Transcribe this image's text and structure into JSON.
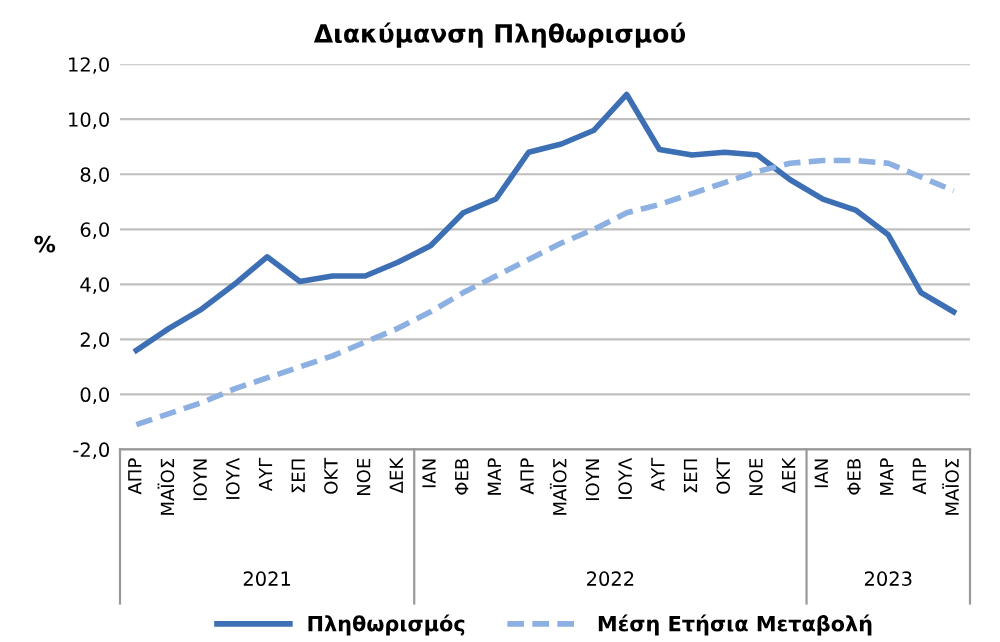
{
  "chart_data": {
    "type": "line",
    "title": "Διακύμανση Πληθωρισμού",
    "ylabel": "%",
    "categories": [
      "ΑΠΡ",
      "ΜΑΪΟΣ",
      "ΙΟΥΝ",
      "ΙΟΥΛ",
      "ΑΥΓ",
      "ΣΕΠ",
      "ΟΚΤ",
      "ΝΟΕ",
      "ΔΕΚ",
      "ΙΑΝ",
      "ΦΕΒ",
      "ΜΑΡ",
      "ΑΠΡ",
      "ΜΑΪΟΣ",
      "ΙΟΥΝ",
      "ΙΟΥΛ",
      "ΑΥΓ",
      "ΣΕΠ",
      "ΟΚΤ",
      "ΝΟΕ",
      "ΔΕΚ",
      "ΙΑΝ",
      "ΦΕΒ",
      "ΜΑΡ",
      "ΑΠΡ",
      "ΜΑΪΟΣ"
    ],
    "annotations": [
      "2021",
      "2022",
      "2023"
    ],
    "ylim": [
      -2,
      12
    ],
    "yticks": [
      {
        "value": -2,
        "label": "-2,0"
      },
      {
        "value": 0,
        "label": "0,0"
      },
      {
        "value": 2,
        "label": "2,0"
      },
      {
        "value": 4,
        "label": "4,0"
      },
      {
        "value": 6,
        "label": "6,0"
      },
      {
        "value": 8,
        "label": "8,0"
      },
      {
        "value": 10,
        "label": "10,0"
      },
      {
        "value": 12,
        "label": "12,0"
      }
    ],
    "grid": "y",
    "legend": "bottom",
    "marker": "none",
    "series": [
      {
        "name": "Πληθωρισμός",
        "color": "#3d6fb4",
        "line_style": "solid",
        "values": [
          1.6,
          2.4,
          3.1,
          4.0,
          5.0,
          4.1,
          4.3,
          4.3,
          4.8,
          5.4,
          6.6,
          7.1,
          8.8,
          9.1,
          9.6,
          10.9,
          8.9,
          8.7,
          8.8,
          8.7,
          7.8,
          7.1,
          6.7,
          5.8,
          3.7,
          3.0
        ]
      },
      {
        "name": "Μέση Ετήσια Μεταβολή",
        "color": "#8cb0e2",
        "line_style": "dashed",
        "values": [
          -1.1,
          -0.7,
          -0.3,
          0.2,
          0.6,
          1.0,
          1.4,
          1.9,
          2.4,
          3.0,
          3.7,
          4.3,
          4.9,
          5.5,
          6.0,
          6.6,
          6.9,
          7.3,
          7.7,
          8.1,
          8.4,
          8.5,
          8.5,
          8.4,
          7.9,
          7.4
        ]
      }
    ]
  }
}
